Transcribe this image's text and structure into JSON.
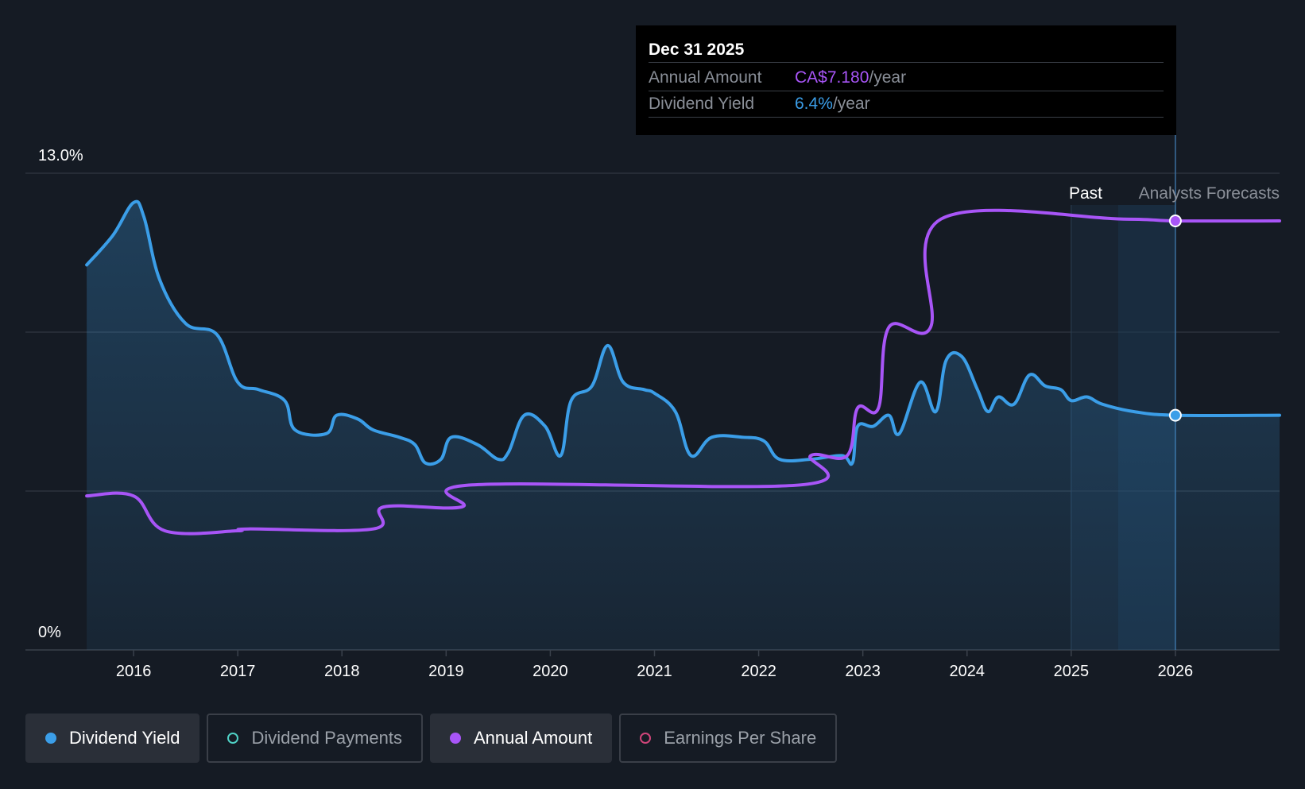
{
  "tooltip": {
    "date": "Dec 31 2025",
    "annual_label": "Annual Amount",
    "annual_value": "CA$7.180",
    "annual_unit": "/year",
    "yield_label": "Dividend Yield",
    "yield_value": "6.4%",
    "yield_unit": "/year"
  },
  "labels": {
    "past": "Past",
    "forecast": "Analysts Forecasts"
  },
  "legend": [
    {
      "label": "Dividend Yield",
      "color": "#3b9ee8",
      "active": true,
      "filled": true
    },
    {
      "label": "Dividend Payments",
      "color": "#4fd1c5",
      "active": false,
      "filled": false
    },
    {
      "label": "Annual Amount",
      "color": "#a855f7",
      "active": true,
      "filled": true
    },
    {
      "label": "Earnings Per Share",
      "color": "#d0457a",
      "active": false,
      "filled": false
    }
  ],
  "colors": {
    "yield": "#3b9ee8",
    "annual": "#a855f7",
    "background": "#151b24",
    "grid": "#2c333d"
  },
  "chart_data": {
    "type": "line",
    "x_ticks": [
      "2016",
      "2017",
      "2018",
      "2019",
      "2020",
      "2021",
      "2022",
      "2023",
      "2024",
      "2025",
      "2026"
    ],
    "y_tick_labels": [
      "13.0%",
      "0%"
    ],
    "ylim": [
      0,
      13
    ],
    "xlim": [
      2015.45,
      2027.0
    ],
    "past_forecast_split": 2025.0,
    "series": [
      {
        "name": "Dividend Yield",
        "points": [
          [
            2015.55,
            10.5
          ],
          [
            2015.8,
            11.3
          ],
          [
            2016.0,
            12.2
          ],
          [
            2016.1,
            11.8
          ],
          [
            2016.25,
            10.1
          ],
          [
            2016.5,
            8.9
          ],
          [
            2016.8,
            8.6
          ],
          [
            2017.0,
            7.3
          ],
          [
            2017.2,
            7.1
          ],
          [
            2017.45,
            6.8
          ],
          [
            2017.55,
            6.0
          ],
          [
            2017.85,
            5.9
          ],
          [
            2017.95,
            6.4
          ],
          [
            2018.15,
            6.3
          ],
          [
            2018.3,
            6.0
          ],
          [
            2018.55,
            5.8
          ],
          [
            2018.7,
            5.6
          ],
          [
            2018.8,
            5.1
          ],
          [
            2018.95,
            5.2
          ],
          [
            2019.05,
            5.8
          ],
          [
            2019.3,
            5.6
          ],
          [
            2019.5,
            5.2
          ],
          [
            2019.6,
            5.4
          ],
          [
            2019.75,
            6.4
          ],
          [
            2019.95,
            6.1
          ],
          [
            2020.1,
            5.3
          ],
          [
            2020.2,
            6.8
          ],
          [
            2020.4,
            7.2
          ],
          [
            2020.55,
            8.3
          ],
          [
            2020.7,
            7.3
          ],
          [
            2020.9,
            7.1
          ],
          [
            2021.0,
            7.0
          ],
          [
            2021.2,
            6.5
          ],
          [
            2021.35,
            5.3
          ],
          [
            2021.55,
            5.8
          ],
          [
            2021.85,
            5.8
          ],
          [
            2022.05,
            5.7
          ],
          [
            2022.2,
            5.2
          ],
          [
            2022.5,
            5.2
          ],
          [
            2022.8,
            5.3
          ],
          [
            2022.9,
            5.1
          ],
          [
            2022.95,
            6.1
          ],
          [
            2023.1,
            6.1
          ],
          [
            2023.25,
            6.4
          ],
          [
            2023.35,
            5.9
          ],
          [
            2023.55,
            7.3
          ],
          [
            2023.7,
            6.5
          ],
          [
            2023.8,
            7.9
          ],
          [
            2023.95,
            8.0
          ],
          [
            2024.1,
            7.1
          ],
          [
            2024.2,
            6.5
          ],
          [
            2024.3,
            6.9
          ],
          [
            2024.45,
            6.7
          ],
          [
            2024.6,
            7.5
          ],
          [
            2024.75,
            7.2
          ],
          [
            2024.9,
            7.1
          ],
          [
            2025.0,
            6.8
          ],
          [
            2025.15,
            6.9
          ],
          [
            2025.3,
            6.7
          ],
          [
            2025.6,
            6.5
          ],
          [
            2026.0,
            6.4
          ],
          [
            2027.0,
            6.4
          ]
        ]
      },
      {
        "name": "Annual Amount",
        "points": [
          [
            2015.55,
            4.2
          ],
          [
            2016.0,
            4.2
          ],
          [
            2016.3,
            3.25
          ],
          [
            2017.0,
            3.25
          ],
          [
            2017.1,
            3.3
          ],
          [
            2018.3,
            3.3
          ],
          [
            2018.4,
            3.9
          ],
          [
            2019.15,
            3.9
          ],
          [
            2019.25,
            4.5
          ],
          [
            2022.4,
            4.5
          ],
          [
            2022.5,
            5.3
          ],
          [
            2022.85,
            5.3
          ],
          [
            2022.95,
            6.6
          ],
          [
            2023.15,
            6.6
          ],
          [
            2023.25,
            8.8
          ],
          [
            2023.65,
            8.8
          ],
          [
            2023.75,
            11.75
          ],
          [
            2025.5,
            11.75
          ],
          [
            2026.0,
            11.7
          ],
          [
            2027.0,
            11.7
          ]
        ]
      }
    ],
    "markers": [
      {
        "series": "Annual Amount",
        "x": 2026.0,
        "y": 11.7
      },
      {
        "series": "Dividend Yield",
        "x": 2026.0,
        "y": 6.4
      }
    ]
  }
}
